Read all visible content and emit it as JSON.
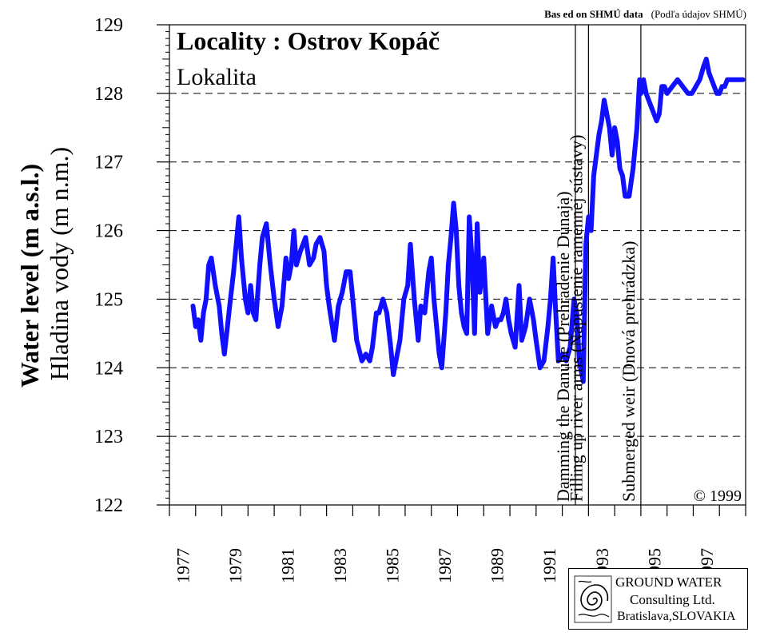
{
  "source_note": {
    "bold": "Bas ed on SHMÚ data",
    "normal": "(Podľa údajov SHMÚ)"
  },
  "title": "Locality : Ostrov Kopáč",
  "subtitle": "Lokalita",
  "y_label_en": "Water level (m a.s.l.)",
  "y_label_sk": "Hladina vody (m n.m.)",
  "copyright": "©  1999",
  "events": [
    {
      "year": 1992.5,
      "label": "Damming the      Danube (Prehradenie Dunaja)"
    },
    {
      "year": 1993.0,
      "label": "Filling up river arms (Napustenie ramennej    sústavy)"
    },
    {
      "year": 1995.0,
      "label": "Submerged weir (Dnová prehrádzka)"
    }
  ],
  "logo": {
    "icon": "ground-water-spiral-icon",
    "line1": "GROUND WATER",
    "line2": "Consulting Ltd.",
    "line3": "Bratislava,SLOVAKIA"
  },
  "chart_data": {
    "type": "line",
    "title": "Locality : Ostrov Kopáč",
    "subtitle": "Lokalita",
    "xlabel": "",
    "ylabel": "Water level (m a.s.l.) / Hladina vody (m n.m.)",
    "xlim": [
      1977,
      1999
    ],
    "ylim": [
      122,
      129
    ],
    "x_ticks": [
      "1977",
      "1979",
      "1981",
      "1983",
      "1985",
      "1987",
      "1989",
      "1991",
      "1993",
      "1995",
      "1997"
    ],
    "y_ticks": [
      "122",
      "123",
      "124",
      "125",
      "126",
      "127",
      "128",
      "129"
    ],
    "grid": "dashed horizontal",
    "line_color": "#1010ff",
    "series": [
      {
        "x": [
          1977.9,
          1978.0,
          1978.1,
          1978.2,
          1978.3,
          1978.4,
          1978.5,
          1978.6,
          1978.75,
          1978.9,
          1979.0,
          1979.1,
          1979.3,
          1979.45,
          1979.55,
          1979.65,
          1979.75,
          1979.9,
          1980.0,
          1980.1,
          1980.2,
          1980.3,
          1980.45,
          1980.55,
          1980.7,
          1980.85,
          1981.0,
          1981.15,
          1981.3,
          1981.45,
          1981.55,
          1981.65,
          1981.75,
          1981.85,
          1982.0,
          1982.2,
          1982.35,
          1982.5,
          1982.6,
          1982.75,
          1982.9,
          1983.0,
          1983.1,
          1983.3,
          1983.45,
          1983.6,
          1983.75,
          1983.9,
          1984.0,
          1984.15,
          1984.35,
          1984.5,
          1984.65,
          1984.75,
          1984.9,
          1985.0,
          1985.15,
          1985.3,
          1985.45,
          1985.55,
          1985.7,
          1985.8,
          1985.95,
          1986.1,
          1986.2,
          1986.35,
          1986.5,
          1986.6,
          1986.75,
          1986.9,
          1987.0,
          1987.1,
          1987.2,
          1987.3,
          1987.4,
          1987.55,
          1987.65,
          1987.75,
          1987.85,
          1987.95,
          1988.05,
          1988.15,
          1988.25,
          1988.35,
          1988.45,
          1988.55,
          1988.65,
          1988.75,
          1988.85,
          1989.0,
          1989.15,
          1989.3,
          1989.45,
          1989.55,
          1989.65,
          1989.75,
          1989.85,
          1989.95,
          1990.05,
          1990.2,
          1990.35,
          1990.45,
          1990.6,
          1990.75,
          1990.9,
          1991.0,
          1991.15,
          1991.3,
          1991.45,
          1991.55,
          1991.65,
          1991.75,
          1991.85,
          1992.0,
          1992.15,
          1992.3,
          1992.45,
          1992.55,
          1992.65,
          1992.8,
          1992.9,
          1993.0,
          1993.1,
          1993.2,
          1993.3,
          1993.4,
          1993.5,
          1993.6,
          1993.7,
          1993.8,
          1993.9,
          1994.0,
          1994.1,
          1994.2,
          1994.3,
          1994.4,
          1994.55,
          1994.7,
          1994.85,
          1994.95,
          1995.0,
          1995.1,
          1995.2,
          1995.3,
          1995.4,
          1995.5,
          1995.6,
          1995.7,
          1995.8,
          1995.9,
          1996.0,
          1996.2,
          1996.4,
          1996.6,
          1996.8,
          1996.95,
          1997.1,
          1997.25,
          1997.4,
          1997.5,
          1997.6,
          1997.7,
          1997.8,
          1997.9,
          1998.0,
          1998.1,
          1998.2,
          1998.3,
          1998.4,
          1998.5,
          1998.6,
          1998.75,
          1998.9
        ],
        "y": [
          124.9,
          124.6,
          124.7,
          124.4,
          124.8,
          125.0,
          125.5,
          125.6,
          125.2,
          124.9,
          124.5,
          124.2,
          124.9,
          125.4,
          125.8,
          126.2,
          125.6,
          125.0,
          124.8,
          125.2,
          124.8,
          124.7,
          125.5,
          125.9,
          126.1,
          125.5,
          125.0,
          124.6,
          124.9,
          125.6,
          125.3,
          125.5,
          126.0,
          125.5,
          125.7,
          125.9,
          125.5,
          125.6,
          125.8,
          125.9,
          125.7,
          125.2,
          124.9,
          124.4,
          124.9,
          125.1,
          125.4,
          125.4,
          125.0,
          124.4,
          124.1,
          124.2,
          124.1,
          124.3,
          124.8,
          124.8,
          125.0,
          124.8,
          124.3,
          123.9,
          124.2,
          124.4,
          125.0,
          125.2,
          125.8,
          125.0,
          124.4,
          124.9,
          124.8,
          125.4,
          125.6,
          125.0,
          124.6,
          124.2,
          124.0,
          124.8,
          125.5,
          125.9,
          126.4,
          126.0,
          125.2,
          124.8,
          124.6,
          124.5,
          126.2,
          125.6,
          124.5,
          126.1,
          125.1,
          125.6,
          124.5,
          124.9,
          124.6,
          124.7,
          124.7,
          124.8,
          125.0,
          124.7,
          124.5,
          124.3,
          125.2,
          124.4,
          124.6,
          125.0,
          124.7,
          124.4,
          124.0,
          124.1,
          124.6,
          125.0,
          125.6,
          124.8,
          124.1,
          124.2,
          124.1,
          124.3,
          125.0,
          124.8,
          124.1,
          123.8,
          125.8,
          126.2,
          126.0,
          126.8,
          127.1,
          127.4,
          127.6,
          127.9,
          127.7,
          127.5,
          127.1,
          127.5,
          127.3,
          126.9,
          126.8,
          126.5,
          126.5,
          126.9,
          127.5,
          128.2,
          128.0,
          128.2,
          128.0,
          127.9,
          127.8,
          127.7,
          127.6,
          127.7,
          128.1,
          128.1,
          128.0,
          128.1,
          128.2,
          128.1,
          128.0,
          128.0,
          128.1,
          128.2,
          128.4,
          128.5,
          128.3,
          128.2,
          128.1,
          128.0,
          128.0,
          128.1,
          128.1,
          128.2,
          128.2,
          128.2,
          128.2,
          128.2,
          128.2
        ]
      }
    ]
  }
}
